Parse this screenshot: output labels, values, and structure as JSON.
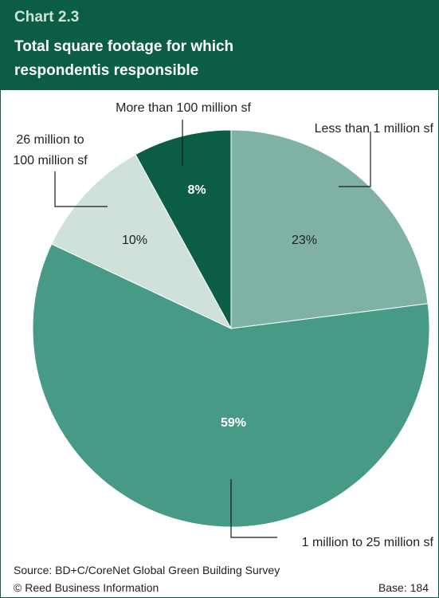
{
  "header": {
    "chart_number": "Chart 2.3",
    "title": "Total square footage for which respondentis responsible"
  },
  "chart_data": {
    "type": "pie",
    "slices": [
      {
        "label": "Less than 1 million sf",
        "label_lines": [
          "Less than 1 million sf"
        ],
        "value": 23,
        "display": "23%",
        "color": "#7fb2a4"
      },
      {
        "label": "1 million to 25 million sf",
        "label_lines": [
          "1 million to 25 million sf"
        ],
        "value": 59,
        "display": "59%",
        "color": "#479a86"
      },
      {
        "label": "26 million to 100 million sf",
        "label_lines": [
          "26 million to",
          "100 million sf"
        ],
        "value": 10,
        "display": "10%",
        "color": "#cfe1da"
      },
      {
        "label": "More than 100 million sf",
        "label_lines": [
          "More than 100 million sf"
        ],
        "value": 8,
        "display": "8%",
        "color": "#0b5e45"
      }
    ]
  },
  "footer": {
    "source": "Source: BD+C/CoreNet Global Green Building Survey",
    "copyright": "© Reed Business Information",
    "base": "Base: 184"
  }
}
